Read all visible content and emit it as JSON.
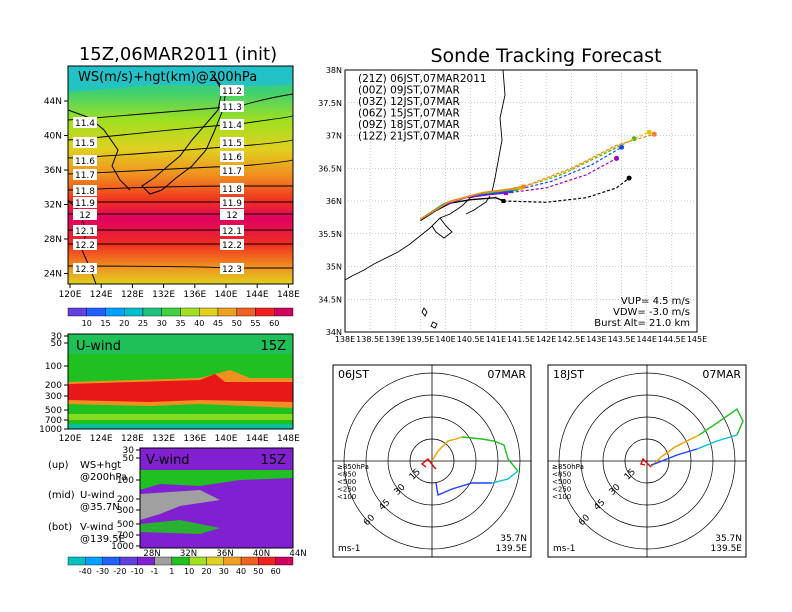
{
  "left": {
    "main_title": "15Z,06MAR2011 (init)",
    "map_label": "WS(m/s)+hgt(km)@200hPa",
    "map_lon_ticks": [
      "120E",
      "124E",
      "128E",
      "132E",
      "136E",
      "140E",
      "144E",
      "148E"
    ],
    "map_lat_ticks": [
      "44N",
      "40N",
      "36N",
      "32N",
      "28N",
      "24N"
    ],
    "hgt_left": [
      "11.4",
      "11.5",
      "11.6",
      "11.7",
      "11.8",
      "11.9",
      "12",
      "12.1",
      "12.2",
      "12.3"
    ],
    "hgt_right": [
      "11.2",
      "11.3",
      "11.4",
      "11.5",
      "11.6",
      "11.7",
      "11.8",
      "11.9",
      "12",
      "12.1",
      "12.2",
      "12.3"
    ],
    "ws_colorbar": [
      "10",
      "15",
      "20",
      "25",
      "30",
      "35",
      "40",
      "45",
      "50",
      "55",
      "60"
    ],
    "uwind_title": "U-wind",
    "uwind_time": "15Z",
    "uwind_lon_ticks": [
      "120E",
      "124E",
      "128E",
      "132E",
      "136E",
      "140E",
      "144E",
      "148E"
    ],
    "pressure_ticks": [
      "30",
      "50",
      "100",
      "200",
      "300",
      "500",
      "700",
      "1000"
    ],
    "vwind_title": "V-wind",
    "vwind_time": "15Z",
    "vwind_lat_ticks": [
      "28N",
      "32N",
      "36N",
      "40N",
      "44N"
    ],
    "legend_lines": [
      [
        "(up)",
        "WS+hgt"
      ],
      [
        "",
        "@200hPa"
      ],
      [
        "(mid)",
        "U-wind"
      ],
      [
        "",
        "@35.7N"
      ],
      [
        "(bot)",
        "V-wind"
      ],
      [
        "",
        "@139.5E"
      ]
    ],
    "wind_colorbar": [
      "-40",
      "-30",
      "-20",
      "-10",
      "-1",
      "1",
      "10",
      "20",
      "30",
      "40",
      "50",
      "60"
    ]
  },
  "right": {
    "title": "Sonde Tracking Forecast",
    "params": [
      "VUP= 4.5 m/s",
      "VDW= -3.0 m/s",
      "Burst Alt= 21.0 km"
    ],
    "hodo_left": {
      "time": "06JST",
      "date": "07MAR"
    },
    "hodo_right": {
      "time": "18JST",
      "date": "07MAR"
    },
    "hodo_location": [
      "35.7N",
      "139.5E"
    ],
    "hodo_unit": "ms-1",
    "hodo_ring_labels": [
      "15",
      "30",
      "45",
      "60"
    ],
    "hodo_pressure_legend": [
      "≥850hPa",
      "<850",
      "<500",
      "<250",
      "<100"
    ],
    "hodo_pressure_colors": [
      "#e00000",
      "#f0a000",
      "#20c020",
      "#00c0d0",
      "#2040ff"
    ]
  },
  "chart_data": {
    "type": "line",
    "title": "Sonde Tracking Forecast",
    "xlim": [
      138,
      145
    ],
    "ylim": [
      34,
      38
    ],
    "x_ticks": [
      "138E",
      "138.5E",
      "139E",
      "139.5E",
      "140E",
      "140.5E",
      "141E",
      "141.5E",
      "142E",
      "142.5E",
      "143E",
      "143.5E",
      "144E",
      "144.5E",
      "145E"
    ],
    "y_ticks": [
      "34N",
      "34.5N",
      "35N",
      "35.5N",
      "36N",
      "36.5N",
      "37N",
      "37.5N",
      "38N"
    ],
    "series": [
      {
        "name": "(21Z) 06JST,07MAR2011",
        "color": "#000000",
        "ascent": [
          [
            139.5,
            35.7
          ],
          [
            139.8,
            35.85
          ],
          [
            140.1,
            35.97
          ],
          [
            140.5,
            36.02
          ],
          [
            141.0,
            36.05
          ],
          [
            141.15,
            36.0
          ]
        ],
        "drift": [
          [
            141.15,
            36.0
          ],
          [
            142.0,
            35.98
          ],
          [
            142.8,
            36.05
          ],
          [
            143.4,
            36.2
          ],
          [
            143.65,
            36.35
          ]
        ]
      },
      {
        "name": "(00Z) 09JST,07MAR",
        "color": "#a000c0",
        "ascent": [
          [
            139.5,
            35.72
          ],
          [
            139.9,
            35.92
          ],
          [
            140.4,
            36.05
          ],
          [
            140.9,
            36.1
          ],
          [
            141.2,
            36.12
          ]
        ],
        "drift": [
          [
            141.2,
            36.12
          ],
          [
            142.0,
            36.2
          ],
          [
            142.8,
            36.4
          ],
          [
            143.4,
            36.65
          ]
        ]
      },
      {
        "name": "(03Z) 12JST,07MAR",
        "color": "#2040ff",
        "ascent": [
          [
            139.5,
            35.72
          ],
          [
            139.95,
            35.95
          ],
          [
            140.5,
            36.08
          ],
          [
            141.0,
            36.12
          ],
          [
            141.3,
            36.15
          ]
        ],
        "drift": [
          [
            141.3,
            36.15
          ],
          [
            142.1,
            36.3
          ],
          [
            142.9,
            36.55
          ],
          [
            143.5,
            36.82
          ]
        ]
      },
      {
        "name": "(06Z) 15JST,07MAR",
        "color": "#20c020",
        "ascent": [
          [
            139.5,
            35.72
          ],
          [
            140.0,
            35.97
          ],
          [
            140.6,
            36.1
          ],
          [
            141.1,
            36.15
          ],
          [
            141.4,
            36.18
          ]
        ],
        "drift": [
          [
            141.4,
            36.18
          ],
          [
            142.3,
            36.4
          ],
          [
            143.1,
            36.7
          ],
          [
            143.75,
            36.95
          ]
        ]
      },
      {
        "name": "(09Z) 18JST,07MAR",
        "color": "#f0c000",
        "ascent": [
          [
            139.5,
            35.72
          ],
          [
            140.05,
            35.98
          ],
          [
            140.7,
            36.12
          ],
          [
            141.2,
            36.17
          ],
          [
            141.5,
            36.2
          ]
        ],
        "drift": [
          [
            141.5,
            36.2
          ],
          [
            142.4,
            36.45
          ],
          [
            143.3,
            36.8
          ],
          [
            144.05,
            37.05
          ]
        ]
      },
      {
        "name": "(12Z) 21JST,07MAR",
        "color": "#f08020",
        "ascent": [
          [
            139.5,
            35.72
          ],
          [
            140.1,
            36.0
          ],
          [
            140.75,
            36.13
          ],
          [
            141.25,
            36.18
          ],
          [
            141.55,
            36.22
          ]
        ],
        "drift": [
          [
            141.55,
            36.22
          ],
          [
            142.5,
            36.5
          ],
          [
            143.4,
            36.85
          ],
          [
            144.15,
            37.02
          ]
        ]
      }
    ]
  }
}
